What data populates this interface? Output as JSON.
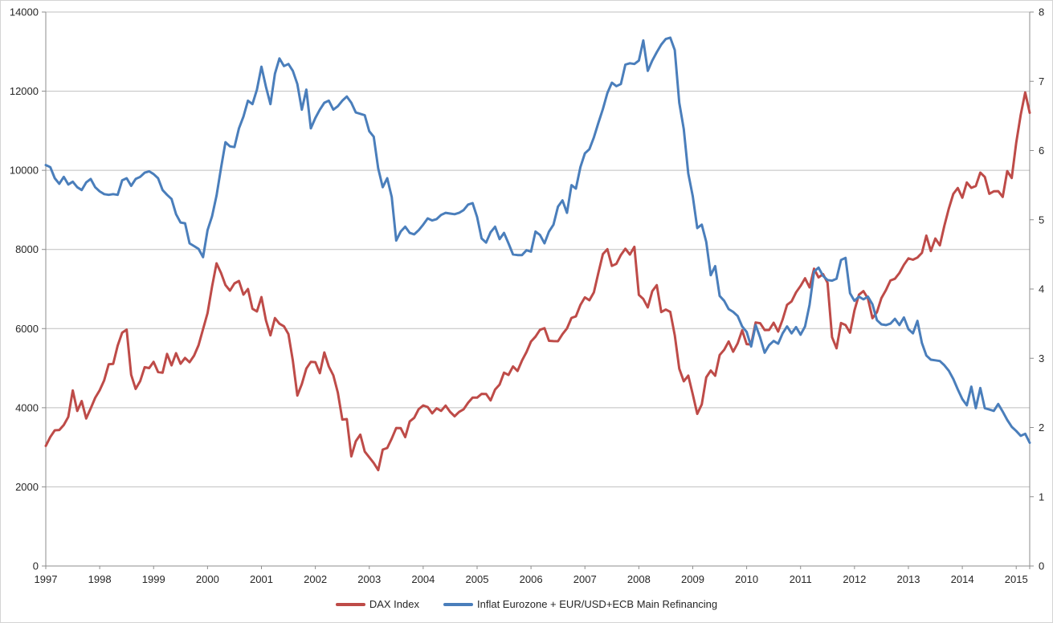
{
  "chart_data": {
    "type": "line",
    "title": "",
    "xlabel": "",
    "ylabel_left": "",
    "ylabel_right": "",
    "grid": true,
    "legend_position": "bottom",
    "x_start": "1997-01",
    "x_end": "2015-04",
    "points_per_year": 12,
    "x_tick_labels": [
      "1997",
      "1998",
      "1999",
      "2000",
      "2001",
      "2002",
      "2003",
      "2004",
      "2005",
      "2006",
      "2007",
      "2008",
      "2009",
      "2010",
      "2011",
      "2012",
      "2013",
      "2014",
      "2015"
    ],
    "y_left_axis": {
      "min": 0,
      "max": 14000,
      "step": 2000,
      "tick_labels": [
        "0",
        "2000",
        "4000",
        "6000",
        "8000",
        "10000",
        "12000",
        "14000"
      ]
    },
    "y_right_axis": {
      "min": 0,
      "max": 8,
      "step": 1,
      "tick_labels": [
        "0",
        "1",
        "2",
        "3",
        "4",
        "5",
        "6",
        "7",
        "8"
      ]
    },
    "series": [
      {
        "name": "DAX Index",
        "axis": "left",
        "color": "#BE4B48",
        "values": [
          3035,
          3260,
          3428,
          3438,
          3563,
          3768,
          4438,
          3917,
          4170,
          3727,
          3981,
          4250,
          4442,
          4694,
          5096,
          5106,
          5569,
          5897,
          5974,
          4834,
          4475,
          4671,
          5023,
          5002,
          5160,
          4902,
          4884,
          5360,
          5070,
          5379,
          5110,
          5259,
          5150,
          5316,
          5580,
          5985,
          6391,
          7061,
          7650,
          7406,
          7100,
          6959,
          7142,
          7203,
          6858,
          7000,
          6500,
          6434,
          6795,
          6208,
          5830,
          6265,
          6123,
          6058,
          5861,
          5189,
          4308,
          4600,
          4989,
          5160,
          5151,
          4873,
          5397,
          5042,
          4818,
          4383,
          3701,
          3713,
          2769,
          3153,
          3320,
          2893,
          2747,
          2603,
          2423,
          2942,
          2982,
          3221,
          3487,
          3484,
          3257,
          3655,
          3746,
          3965,
          4058,
          4018,
          3857,
          3985,
          3921,
          4053,
          3896,
          3785,
          3893,
          3960,
          4126,
          4256,
          4254,
          4350,
          4349,
          4184,
          4460,
          4586,
          4886,
          4830,
          5044,
          4929,
          5193,
          5408,
          5674,
          5796,
          5970,
          6009,
          5692,
          5683,
          5682,
          5859,
          6004,
          6269,
          6309,
          6597,
          6789,
          6715,
          6917,
          7409,
          7883,
          8007,
          7584,
          7638,
          7861,
          8019,
          7870,
          8067,
          6851,
          6748,
          6535,
          6948,
          7097,
          6418,
          6480,
          6422,
          5831,
          4987,
          4669,
          4810,
          4338,
          3844,
          4085,
          4769,
          4941,
          4809,
          5332,
          5464,
          5675,
          5415,
          5626,
          5957,
          5609,
          5598,
          6154,
          6136,
          5964,
          5966,
          6148,
          5925,
          6229,
          6601,
          6688,
          6914,
          7077,
          7272,
          7041,
          7514,
          7293,
          7376,
          7159,
          5785,
          5502,
          6141,
          6088,
          5898,
          6459,
          6856,
          6947,
          6761,
          6264,
          6416,
          6772,
          6971,
          7216,
          7260,
          7406,
          7612,
          7776,
          7741,
          7795,
          7914,
          8349,
          7959,
          8276,
          8103,
          8594,
          9034,
          9405,
          9552,
          9306,
          9692,
          9556,
          9603,
          9943,
          9833,
          9407,
          9470,
          9474,
          9327,
          9981,
          9806,
          10694,
          11402,
          11966,
          11454
        ]
      },
      {
        "name": "Inflat Eurozone + EUR/USD+ECB Main Refinancing",
        "axis": "right",
        "color": "#4A7EBB",
        "values": [
          5.79,
          5.76,
          5.6,
          5.52,
          5.62,
          5.51,
          5.55,
          5.47,
          5.43,
          5.54,
          5.59,
          5.47,
          5.41,
          5.37,
          5.36,
          5.37,
          5.36,
          5.57,
          5.6,
          5.49,
          5.59,
          5.62,
          5.68,
          5.7,
          5.66,
          5.6,
          5.43,
          5.36,
          5.3,
          5.08,
          4.96,
          4.95,
          4.66,
          4.62,
          4.58,
          4.46,
          4.85,
          5.05,
          5.35,
          5.75,
          6.12,
          6.06,
          6.05,
          6.32,
          6.49,
          6.72,
          6.67,
          6.88,
          7.21,
          6.92,
          6.67,
          7.11,
          7.33,
          7.22,
          7.25,
          7.15,
          6.96,
          6.59,
          6.88,
          6.32,
          6.47,
          6.59,
          6.69,
          6.72,
          6.59,
          6.64,
          6.72,
          6.78,
          6.69,
          6.55,
          6.53,
          6.51,
          6.28,
          6.2,
          5.74,
          5.47,
          5.6,
          5.33,
          4.7,
          4.83,
          4.9,
          4.81,
          4.79,
          4.85,
          4.93,
          5.02,
          4.99,
          5.01,
          5.07,
          5.1,
          5.09,
          5.08,
          5.1,
          5.14,
          5.22,
          5.24,
          5.04,
          4.73,
          4.67,
          4.82,
          4.9,
          4.72,
          4.81,
          4.66,
          4.5,
          4.49,
          4.49,
          4.56,
          4.54,
          4.83,
          4.78,
          4.66,
          4.83,
          4.93,
          5.19,
          5.28,
          5.1,
          5.5,
          5.45,
          5.76,
          5.96,
          6.02,
          6.19,
          6.4,
          6.6,
          6.83,
          6.98,
          6.93,
          6.96,
          7.24,
          7.26,
          7.25,
          7.3,
          7.59,
          7.15,
          7.3,
          7.42,
          7.53,
          7.61,
          7.63,
          7.45,
          6.69,
          6.31,
          5.67,
          5.34,
          4.88,
          4.93,
          4.68,
          4.2,
          4.33,
          3.9,
          3.83,
          3.71,
          3.67,
          3.61,
          3.46,
          3.38,
          3.17,
          3.48,
          3.3,
          3.08,
          3.19,
          3.25,
          3.21,
          3.36,
          3.46,
          3.36,
          3.45,
          3.34,
          3.46,
          3.77,
          4.25,
          4.31,
          4.19,
          4.13,
          4.12,
          4.15,
          4.42,
          4.45,
          3.94,
          3.83,
          3.89,
          3.85,
          3.89,
          3.78,
          3.55,
          3.49,
          3.48,
          3.5,
          3.57,
          3.48,
          3.59,
          3.42,
          3.36,
          3.54,
          3.22,
          3.04,
          2.98,
          2.97,
          2.96,
          2.9,
          2.82,
          2.7,
          2.55,
          2.41,
          2.32,
          2.59,
          2.28,
          2.57,
          2.28,
          2.26,
          2.24,
          2.34,
          2.23,
          2.11,
          2.01,
          1.95,
          1.88,
          1.91,
          1.78
        ]
      }
    ]
  },
  "legend": {
    "items": [
      {
        "label": "DAX Index",
        "color": "#BE4B48"
      },
      {
        "label": "Inflat Eurozone + EUR/USD+ECB Main Refinancing",
        "color": "#4A7EBB"
      }
    ]
  },
  "colors": {
    "dax_line": "#BE4B48",
    "indicator_line": "#4A7EBB",
    "gridline": "#BFBFBF",
    "axis_line": "#8E8E8E",
    "label_text": "#262626",
    "frame_border": "#D4D4D4",
    "background": "#FFFFFF"
  }
}
